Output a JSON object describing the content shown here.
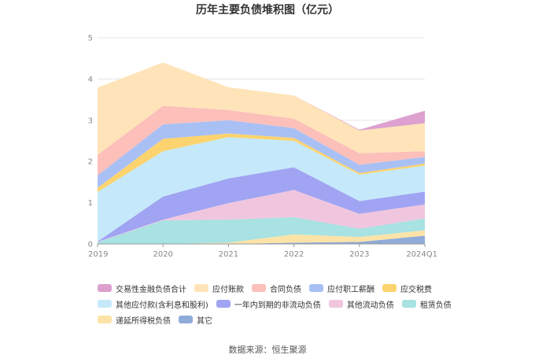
{
  "chart_data": {
    "type": "area",
    "stacked": true,
    "title": "历年主要负债堆积图（亿元）",
    "categories": [
      "2019",
      "2020",
      "2021",
      "2022",
      "2023",
      "2024Q1"
    ],
    "ylim": [
      0,
      5
    ],
    "yticks": [
      "0",
      "1",
      "2",
      "3",
      "4",
      "5"
    ],
    "grid": true,
    "legend_position": "bottom",
    "series": [
      {
        "name": "其它",
        "color": "#8fabd9",
        "values": [
          0,
          0,
          0,
          0.03,
          0.05,
          0.2
        ]
      },
      {
        "name": "递延所得税负债",
        "color": "#fde3a7",
        "values": [
          0,
          0,
          0.03,
          0.2,
          0.12,
          0.13
        ]
      },
      {
        "name": "租赁负债",
        "color": "#a8e2e2",
        "values": [
          0.04,
          0.57,
          0.56,
          0.42,
          0.2,
          0.29
        ]
      },
      {
        "name": "其他流动负债",
        "color": "#f0c6df",
        "values": [
          0.01,
          0.02,
          0.4,
          0.66,
          0.36,
          0.34
        ]
      },
      {
        "name": "一年内到期的非流动负债",
        "color": "#a0a4f2",
        "values": [
          0.01,
          0.56,
          0.6,
          0.55,
          0.31,
          0.31
        ]
      },
      {
        "name": "其他应付款(含利息和股利)",
        "color": "#c5e9fa",
        "values": [
          1.2,
          1.1,
          1.0,
          0.64,
          0.64,
          0.63
        ]
      },
      {
        "name": "应交税费",
        "color": "#fcd36e",
        "values": [
          0.1,
          0.3,
          0.09,
          0.07,
          0.04,
          0.05
        ]
      },
      {
        "name": "应付职工薪酬",
        "color": "#a9c0f5",
        "values": [
          0.3,
          0.35,
          0.32,
          0.24,
          0.2,
          0.16
        ]
      },
      {
        "name": "合同负债",
        "color": "#fcbfba",
        "values": [
          0.5,
          0.45,
          0.25,
          0.23,
          0.28,
          0.14
        ]
      },
      {
        "name": "应付账款",
        "color": "#fee4b8",
        "values": [
          1.63,
          1.05,
          0.55,
          0.56,
          0.55,
          0.68
        ]
      },
      {
        "name": "交易性金融负债合计",
        "color": "#dda0cf",
        "values": [
          0,
          0,
          0,
          0,
          0.02,
          0.3
        ]
      }
    ],
    "legend_order": [
      "交易性金融负债合计",
      "应付账款",
      "合同负债",
      "应付职工薪酬",
      "应交税费",
      "其他应付款(含利息和股利)",
      "一年内到期的非流动负债",
      "其他流动负债",
      "租赁负债",
      "递延所得税负债",
      "其它"
    ]
  },
  "footer": {
    "source": "数据来源：恒生聚源"
  }
}
